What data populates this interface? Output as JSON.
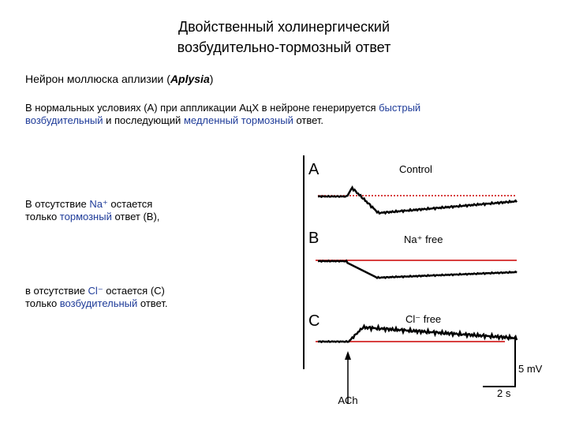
{
  "title": [
    "Двойственный холинергический",
    "возбудительно-тормозный ответ"
  ],
  "subtitle": [
    "Нейрон моллюска аплизии (",
    "Aplysia",
    ")"
  ],
  "paragraph": [
    "В нормальных условиях (А) при аппликации АцХ в нейроне генерируется ",
    "быстрый возбудительный",
    " и последующий ",
    "медленный тормозный",
    " ответ."
  ],
  "note_b": [
    [
      "В отсутствие ",
      "Na⁺",
      " остается"
    ],
    [
      "только ",
      "тормозный",
      " ответ (В),"
    ]
  ],
  "note_c": [
    [
      "в отсутствие ",
      "Cl⁻",
      " остается (С)"
    ],
    [
      "только ",
      "возбудительный",
      " ответ."
    ]
  ],
  "figure": {
    "panels": [
      {
        "letter": "A",
        "label": "Control"
      },
      {
        "letter": "B",
        "label": "Na⁺ free"
      },
      {
        "letter": "C",
        "label": "Cl⁻ free"
      }
    ],
    "scale_voltage": "5 mV",
    "scale_time": "2 s",
    "stimulus": "ACh"
  }
}
